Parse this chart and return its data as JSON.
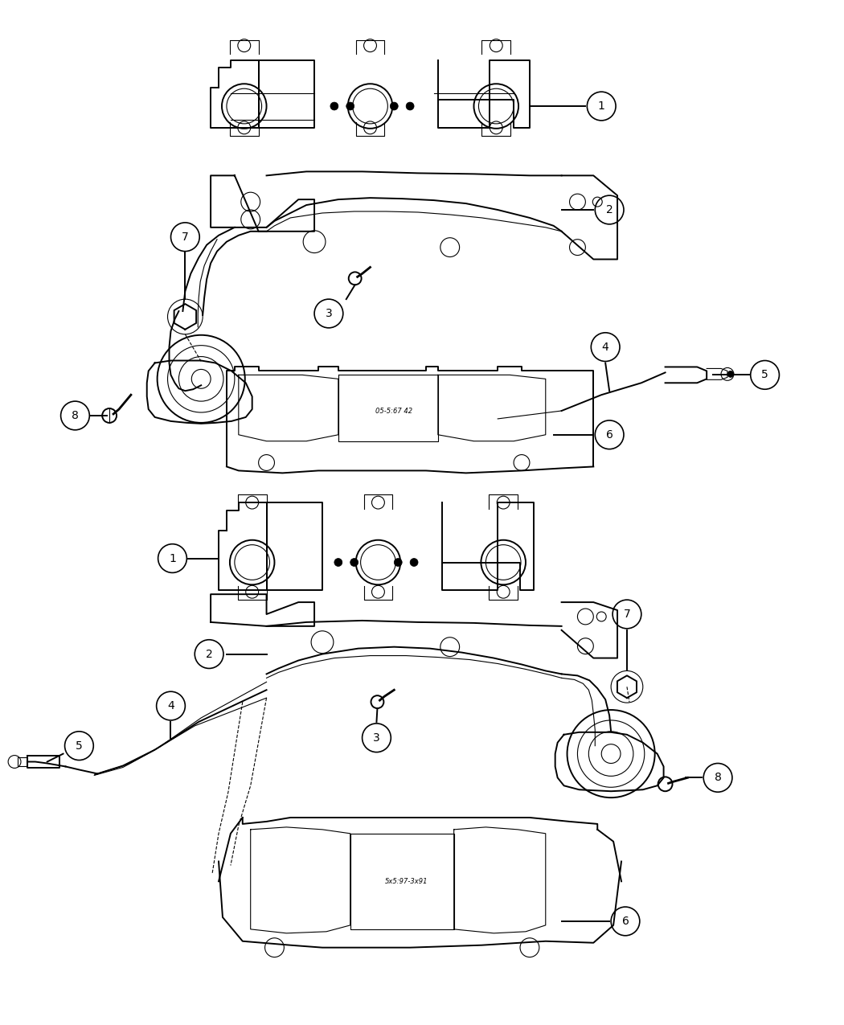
{
  "bg_color": "#ffffff",
  "line_color": "#000000",
  "lw_main": 1.4,
  "lw_thin": 0.8,
  "lw_thick": 2.0
}
